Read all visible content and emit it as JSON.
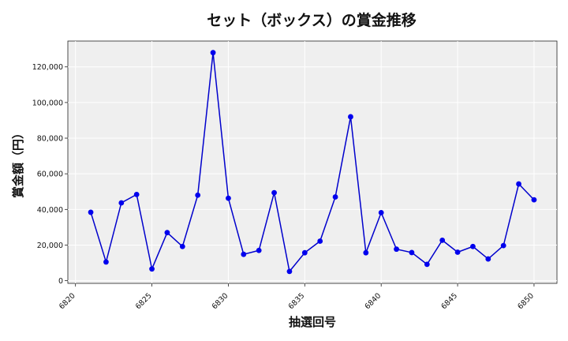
{
  "chart_data": {
    "type": "line",
    "title": "セット（ボックス）の賞金推移",
    "xlabel": "抽選回号",
    "ylabel": "賞金額（円）",
    "x": [
      6821,
      6822,
      6823,
      6824,
      6825,
      6826,
      6827,
      6828,
      6829,
      6830,
      6831,
      6832,
      6833,
      6834,
      6835,
      6836,
      6837,
      6838,
      6839,
      6840,
      6841,
      6842,
      6843,
      6844,
      6845,
      6846,
      6847,
      6848,
      6849,
      6850
    ],
    "series": [
      {
        "values": [
          38400,
          10500,
          43700,
          48400,
          6600,
          27000,
          19200,
          48000,
          128000,
          46300,
          14800,
          17000,
          49400,
          5200,
          15700,
          22200,
          47000,
          92000,
          15700,
          38200,
          17700,
          15800,
          9200,
          22700,
          16000,
          19200,
          12200,
          19700,
          54300,
          45400
        ]
      }
    ],
    "xlim": [
      6819.5,
      6851.5
    ],
    "ylim": [
      -1500,
      134500
    ],
    "xticks": [
      6820,
      6825,
      6830,
      6835,
      6840,
      6845,
      6850
    ],
    "xtick_labels": [
      "6820",
      "6825",
      "6830",
      "6835",
      "6840",
      "6845",
      "6850"
    ],
    "yticks": [
      0,
      20000,
      40000,
      60000,
      80000,
      100000,
      120000
    ],
    "ytick_labels": [
      "0",
      "20,000",
      "40,000",
      "60,000",
      "80,000",
      "100,000",
      "120,000"
    ],
    "grid": true,
    "line_color": "#0000cc",
    "marker_color": "#0000ee",
    "background_color": "#efefef"
  }
}
